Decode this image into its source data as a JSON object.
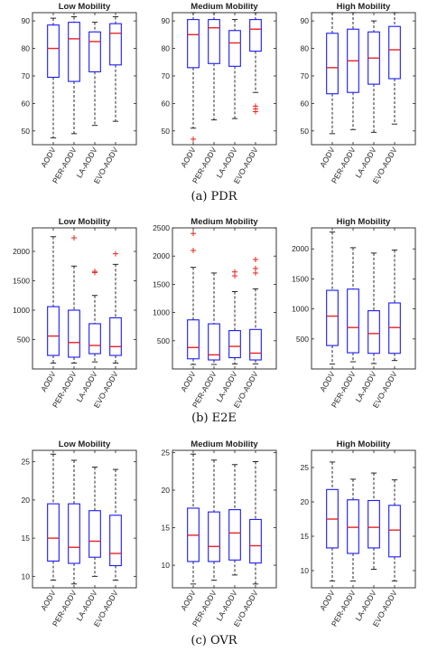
{
  "colors": {
    "box": "#1a1aff",
    "median": "#e8241e",
    "outlier": "#e8241e",
    "whisker": "#111111",
    "frame": "#222222"
  },
  "categories": [
    "AODV",
    "PER-AODV",
    "LA-AODV",
    "EVO-AODV"
  ],
  "chart_data": [
    {
      "type": "box",
      "group": 0,
      "title": "Low Mobility",
      "ylim": [
        45,
        93
      ],
      "yticks": [
        50,
        60,
        70,
        80,
        90
      ],
      "categories": [
        "AODV",
        "PER-AODV",
        "LA-AODV",
        "EVO-AODV"
      ],
      "boxes": [
        {
          "min": 47.5,
          "q1": 69.5,
          "median": 80,
          "q3": 88.5,
          "max": 91,
          "outliers": []
        },
        {
          "min": 49,
          "q1": 68,
          "median": 83.5,
          "q3": 89.5,
          "max": 91.5,
          "outliers": []
        },
        {
          "min": 52,
          "q1": 71.5,
          "median": 82.5,
          "q3": 86,
          "max": 89.5,
          "outliers": []
        },
        {
          "min": 53.5,
          "q1": 74,
          "median": 85.5,
          "q3": 89,
          "max": 91.5,
          "outliers": []
        }
      ]
    },
    {
      "type": "box",
      "group": 0,
      "title": "Medium Mobility",
      "ylim": [
        45,
        93
      ],
      "yticks": [
        50,
        60,
        70,
        80,
        90
      ],
      "categories": [
        "AODV",
        "PER-AODV",
        "LA-AODV",
        "EVO-AODV"
      ],
      "boxes": [
        {
          "min": 51,
          "q1": 73,
          "median": 85,
          "q3": 90.5,
          "max": 93,
          "outliers": [
            47
          ]
        },
        {
          "min": 54,
          "q1": 74.5,
          "median": 87.5,
          "q3": 90.5,
          "max": 93,
          "outliers": []
        },
        {
          "min": 54.5,
          "q1": 73.5,
          "median": 82,
          "q3": 86.5,
          "max": 90.5,
          "outliers": []
        },
        {
          "min": 64,
          "q1": 79,
          "median": 87,
          "q3": 90.5,
          "max": 93,
          "outliers": [
            59,
            58,
            57
          ]
        }
      ]
    },
    {
      "type": "box",
      "group": 0,
      "title": "High Mobility",
      "ylim": [
        45,
        93
      ],
      "yticks": [
        50,
        60,
        70,
        80,
        90
      ],
      "categories": [
        "AODV",
        "PER-AODV",
        "LA-AODV",
        "EVO-AODV"
      ],
      "boxes": [
        {
          "min": 49,
          "q1": 63.5,
          "median": 73,
          "q3": 85.5,
          "max": 93,
          "outliers": []
        },
        {
          "min": 50.5,
          "q1": 64,
          "median": 75.5,
          "q3": 87,
          "max": 93,
          "outliers": []
        },
        {
          "min": 49.5,
          "q1": 67,
          "median": 76.5,
          "q3": 86,
          "max": 90,
          "outliers": []
        },
        {
          "min": 52.5,
          "q1": 69,
          "median": 79.5,
          "q3": 88,
          "max": 93,
          "outliers": []
        }
      ]
    },
    {
      "type": "box",
      "group": 1,
      "title": "Low Mobility",
      "ylim": [
        0,
        2400
      ],
      "yticks": [
        500,
        1000,
        1500,
        2000
      ],
      "categories": [
        "AODV",
        "PER-AODV",
        "LA-AODV",
        "EVO-AODV"
      ],
      "boxes": [
        {
          "min": 100,
          "q1": 230,
          "median": 560,
          "q3": 1060,
          "max": 2250,
          "outliers": []
        },
        {
          "min": 100,
          "q1": 200,
          "median": 450,
          "q3": 1000,
          "max": 1750,
          "outliers": [
            2230
          ]
        },
        {
          "min": 120,
          "q1": 260,
          "median": 400,
          "q3": 770,
          "max": 1250,
          "outliers": [
            1640,
            1660
          ]
        },
        {
          "min": 100,
          "q1": 230,
          "median": 380,
          "q3": 870,
          "max": 1780,
          "outliers": [
            1960
          ]
        }
      ]
    },
    {
      "type": "box",
      "group": 1,
      "title": "Medium Mobility",
      "ylim": [
        0,
        2500
      ],
      "yticks": [
        500,
        1000,
        1500,
        2000,
        2500
      ],
      "categories": [
        "AODV",
        "PER-AODV",
        "LA-AODV",
        "EVO-AODV"
      ],
      "boxes": [
        {
          "min": 80,
          "q1": 180,
          "median": 380,
          "q3": 870,
          "max": 1800,
          "outliers": [
            2100,
            2400
          ]
        },
        {
          "min": 80,
          "q1": 160,
          "median": 250,
          "q3": 800,
          "max": 1700,
          "outliers": []
        },
        {
          "min": 90,
          "q1": 200,
          "median": 400,
          "q3": 680,
          "max": 1370,
          "outliers": [
            1650,
            1720
          ]
        },
        {
          "min": 90,
          "q1": 160,
          "median": 280,
          "q3": 700,
          "max": 1420,
          "outliers": [
            1700,
            1780,
            1940
          ]
        }
      ]
    },
    {
      "type": "box",
      "group": 1,
      "title": "High Mobility",
      "ylim": [
        0,
        2350
      ],
      "yticks": [
        500,
        1000,
        1500,
        2000
      ],
      "categories": [
        "AODV",
        "PER-AODV",
        "LA-AODV",
        "EVO-AODV"
      ],
      "boxes": [
        {
          "min": 80,
          "q1": 390,
          "median": 880,
          "q3": 1310,
          "max": 2280,
          "outliers": []
        },
        {
          "min": 120,
          "q1": 270,
          "median": 690,
          "q3": 1330,
          "max": 2020,
          "outliers": []
        },
        {
          "min": 90,
          "q1": 260,
          "median": 590,
          "q3": 970,
          "max": 1930,
          "outliers": []
        },
        {
          "min": 140,
          "q1": 260,
          "median": 690,
          "q3": 1100,
          "max": 1980,
          "outliers": []
        }
      ]
    },
    {
      "type": "box",
      "group": 2,
      "title": "Low Mobility",
      "ylim": [
        8.5,
        26.5
      ],
      "yticks": [
        10,
        15,
        20,
        25
      ],
      "categories": [
        "AODV",
        "PER-AODV",
        "LA-AODV",
        "EVO-AODV"
      ],
      "boxes": [
        {
          "min": 9.5,
          "q1": 12,
          "median": 15,
          "q3": 19.5,
          "max": 26,
          "outliers": []
        },
        {
          "min": 9,
          "q1": 11.7,
          "median": 13.8,
          "q3": 19.5,
          "max": 25.2,
          "outliers": []
        },
        {
          "min": 10,
          "q1": 12.5,
          "median": 14.6,
          "q3": 18.6,
          "max": 24.3,
          "outliers": []
        },
        {
          "min": 9.5,
          "q1": 11.4,
          "median": 13,
          "q3": 18,
          "max": 24,
          "outliers": []
        }
      ]
    },
    {
      "type": "box",
      "group": 2,
      "title": "Medium Mobility",
      "ylim": [
        7,
        25.3
      ],
      "yticks": [
        10,
        15,
        20,
        25
      ],
      "categories": [
        "AODV",
        "PER-AODV",
        "LA-AODV",
        "EVO-AODV"
      ],
      "boxes": [
        {
          "min": 7.5,
          "q1": 10.5,
          "median": 14,
          "q3": 17.6,
          "max": 24.8,
          "outliers": []
        },
        {
          "min": 8,
          "q1": 10.5,
          "median": 12.5,
          "q3": 17.1,
          "max": 24,
          "outliers": []
        },
        {
          "min": 8.7,
          "q1": 10.7,
          "median": 14.3,
          "q3": 17.4,
          "max": 23.4,
          "outliers": []
        },
        {
          "min": 7.5,
          "q1": 10.3,
          "median": 12.6,
          "q3": 16.1,
          "max": 23.8,
          "outliers": []
        }
      ]
    },
    {
      "type": "box",
      "group": 2,
      "title": "High Mobility",
      "ylim": [
        7.5,
        27.5
      ],
      "yticks": [
        10,
        15,
        20,
        25
      ],
      "categories": [
        "AODV",
        "PER-AODV",
        "LA-AODV",
        "EVO-AODV"
      ],
      "boxes": [
        {
          "min": 8.5,
          "q1": 13.3,
          "median": 17.5,
          "q3": 21.8,
          "max": 25.8,
          "outliers": []
        },
        {
          "min": 8.5,
          "q1": 12.5,
          "median": 16.3,
          "q3": 20.3,
          "max": 23.3,
          "outliers": []
        },
        {
          "min": 10.2,
          "q1": 13.3,
          "median": 16.3,
          "q3": 20.2,
          "max": 24.2,
          "outliers": []
        },
        {
          "min": 8.5,
          "q1": 12,
          "median": 15.9,
          "q3": 19.5,
          "max": 23.2,
          "outliers": []
        }
      ]
    }
  ],
  "captions": [
    "(a)  PDR",
    "(b)  E2E",
    "(c)  OVR"
  ]
}
